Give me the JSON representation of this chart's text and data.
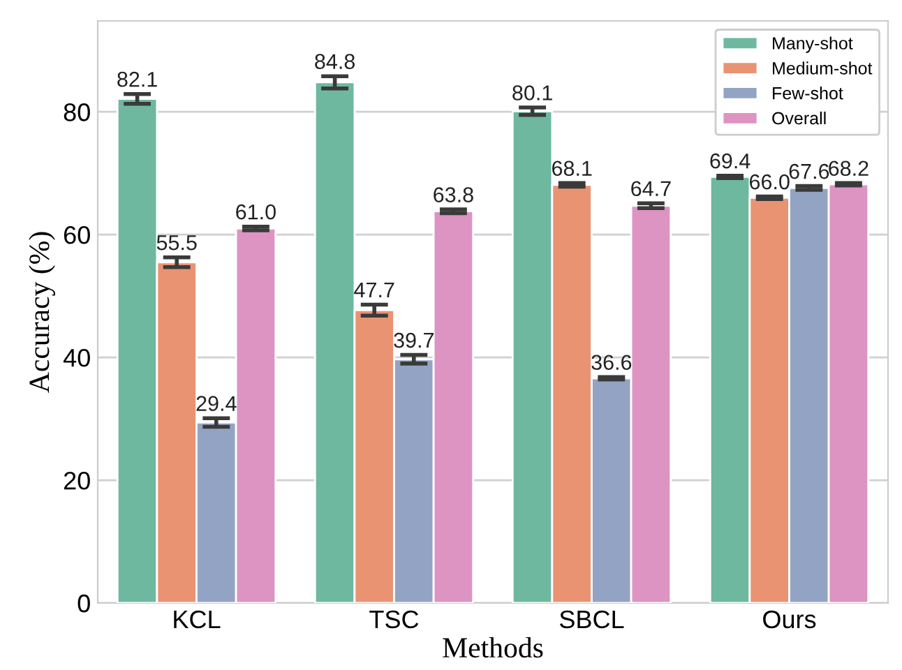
{
  "chart_data": {
    "type": "bar",
    "xlabel": "Methods",
    "ylabel": "Accuracy (%)",
    "categories": [
      "KCL",
      "TSC",
      "SBCL",
      "Ours"
    ],
    "series": [
      {
        "name": "Many-shot",
        "color": "#6fb8a0",
        "values": [
          82.1,
          84.8,
          80.1,
          69.4
        ],
        "errors": [
          0.8,
          1.0,
          0.6,
          0.2
        ],
        "value_labels": [
          "82.1",
          "84.8",
          "80.1",
          "69.4"
        ]
      },
      {
        "name": "Medium-shot",
        "color": "#e99373",
        "values": [
          55.5,
          47.7,
          68.1,
          66.0
        ],
        "errors": [
          0.8,
          0.9,
          0.3,
          0.2
        ],
        "value_labels": [
          "55.5",
          "47.7",
          "68.1",
          "66.0"
        ]
      },
      {
        "name": "Few-shot",
        "color": "#93a3c3",
        "values": [
          29.4,
          39.7,
          36.6,
          67.6
        ],
        "errors": [
          0.7,
          0.7,
          0.2,
          0.3
        ],
        "value_labels": [
          "29.4",
          "39.7",
          "36.6",
          "67.6"
        ]
      },
      {
        "name": "Overall",
        "color": "#dd94c2",
        "values": [
          61.0,
          63.8,
          64.7,
          68.2
        ],
        "errors": [
          0.3,
          0.3,
          0.4,
          0.2
        ],
        "value_labels": [
          "61.0",
          "63.8",
          "64.7",
          "68.2"
        ]
      }
    ],
    "ylim": [
      0,
      94.8
    ],
    "yticks": [
      0,
      20,
      40,
      60,
      80
    ],
    "grid": "y",
    "legend": "top right"
  }
}
